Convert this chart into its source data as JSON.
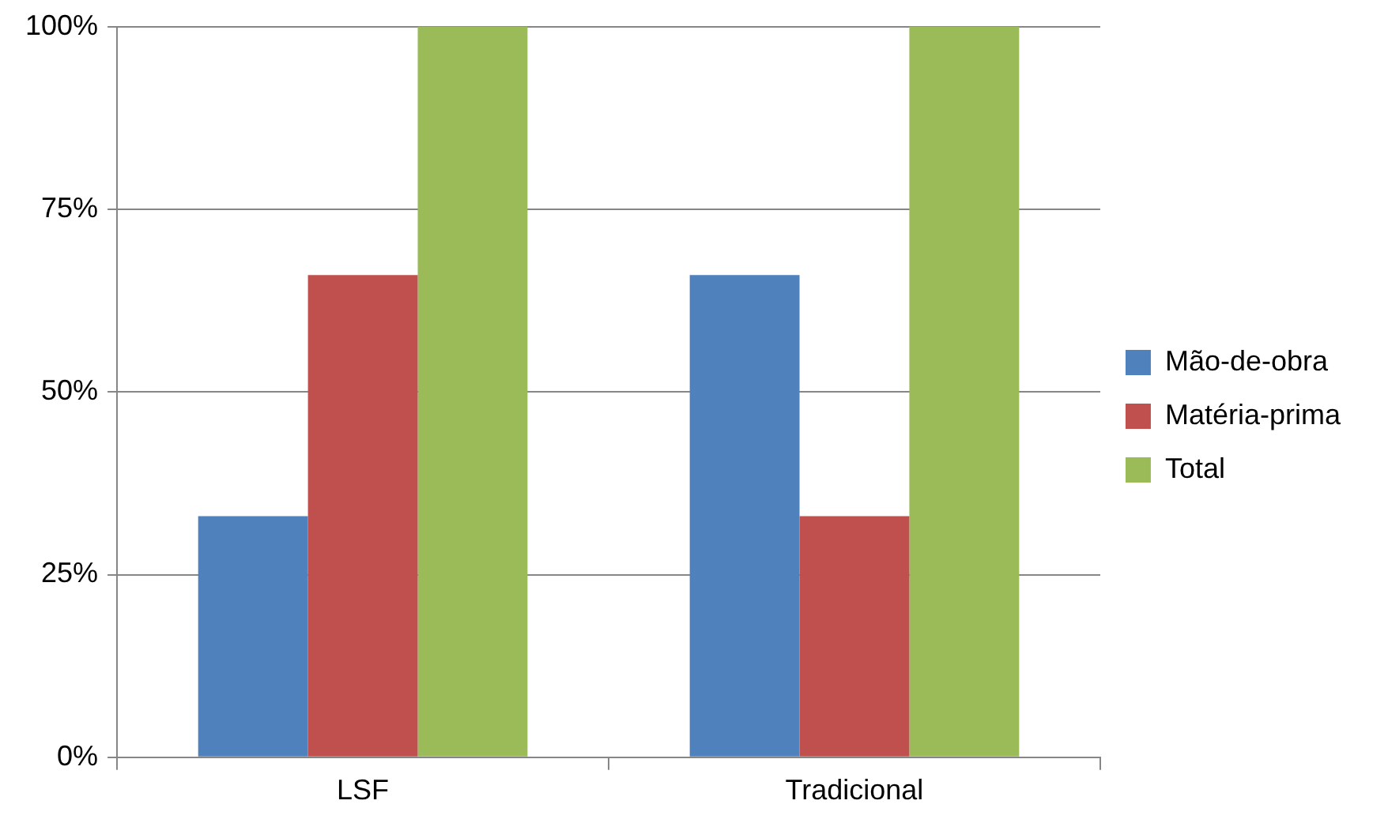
{
  "chart_data": {
    "type": "bar",
    "categories": [
      "LSF",
      "Tradicional"
    ],
    "series": [
      {
        "name": "Mão-de-obra",
        "color": "#4f81bd",
        "values": [
          33,
          66
        ]
      },
      {
        "name": "Matéria-prima",
        "color": "#c0504d",
        "values": [
          66,
          33
        ]
      },
      {
        "name": "Total",
        "color": "#9bbb59",
        "values": [
          100,
          100
        ]
      }
    ],
    "ylim": [
      0,
      100
    ],
    "yticks": [
      {
        "value": 0,
        "label": "0%"
      },
      {
        "value": 25,
        "label": "25%"
      },
      {
        "value": 50,
        "label": "50%"
      },
      {
        "value": 75,
        "label": "75%"
      },
      {
        "value": 100,
        "label": "100%"
      }
    ],
    "grid": "y",
    "legend": "right"
  }
}
